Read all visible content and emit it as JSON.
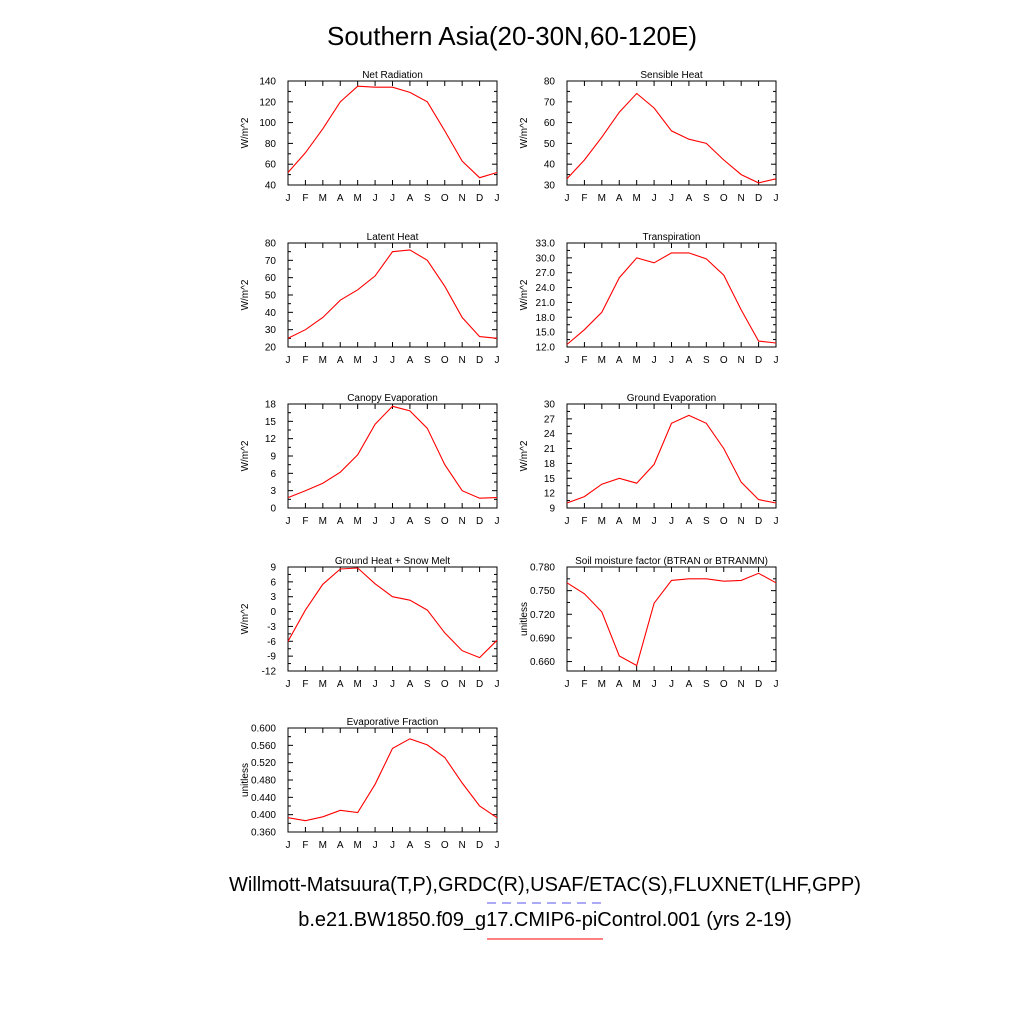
{
  "title": "Southern Asia(20-30N,60-120E)",
  "footer": {
    "obs_label": "Willmott-Matsuura(T,P),GRDC(R),USAF/ETAC(S),FLUXNET(LHF,GPP)",
    "obs_line_color": "#5555ee",
    "model_label": "b.e21.BW1850.f09_g17.CMIP6-piControl.001 (yrs 2-19)",
    "model_line_color": "#ff0000"
  },
  "months": [
    "J",
    "F",
    "M",
    "A",
    "M",
    "J",
    "J",
    "A",
    "S",
    "O",
    "N",
    "D",
    "J"
  ],
  "line_color": "#ff0000",
  "chart_data": [
    {
      "type": "line",
      "title": "Net Radiation",
      "ylabel": "W/m^2",
      "ylim": [
        40,
        140
      ],
      "yticks": [
        "40",
        "60",
        "80",
        "100",
        "120",
        "140"
      ],
      "values": [
        52,
        71,
        94,
        120,
        135,
        134,
        134,
        129,
        120,
        92,
        63,
        47,
        52
      ]
    },
    {
      "type": "line",
      "title": "Sensible Heat",
      "ylabel": "W/m^2",
      "ylim": [
        30,
        80
      ],
      "yticks": [
        "30",
        "40",
        "50",
        "60",
        "70",
        "80"
      ],
      "values": [
        33,
        42,
        53,
        65,
        74,
        67,
        56,
        52,
        50,
        42,
        35,
        31,
        33
      ]
    },
    {
      "type": "line",
      "title": "Latent Heat",
      "ylabel": "W/m^2",
      "ylim": [
        20,
        80
      ],
      "yticks": [
        "20",
        "30",
        "40",
        "50",
        "60",
        "70",
        "80"
      ],
      "values": [
        25,
        30,
        37,
        47,
        53,
        61,
        75,
        76,
        70,
        55,
        37,
        26,
        25
      ]
    },
    {
      "type": "line",
      "title": "Transpiration",
      "ylabel": "W/m^2",
      "ylim": [
        12,
        33
      ],
      "yticks": [
        "12.0",
        "15.0",
        "18.0",
        "21.0",
        "24.0",
        "27.0",
        "30.0",
        "33.0"
      ],
      "values": [
        12.5,
        15.5,
        19,
        26,
        30,
        29,
        31,
        31,
        29.8,
        26.5,
        19.5,
        13.2,
        12.8
      ]
    },
    {
      "type": "line",
      "title": "Canopy Evaporation",
      "ylabel": "W/m^2",
      "ylim": [
        0,
        18
      ],
      "yticks": [
        "0",
        "3",
        "6",
        "9",
        "12",
        "15",
        "18"
      ],
      "values": [
        1.8,
        3,
        4.3,
        6.2,
        9.2,
        14.5,
        17.6,
        16.8,
        13.8,
        7.5,
        3,
        1.7,
        1.8
      ]
    },
    {
      "type": "line",
      "title": "Ground Evaporation",
      "ylabel": "W/m^2",
      "ylim": [
        9,
        30
      ],
      "yticks": [
        "9",
        "12",
        "15",
        "18",
        "21",
        "24",
        "27",
        "30"
      ],
      "values": [
        10,
        11.3,
        13.8,
        15,
        14,
        17.8,
        26.1,
        27.7,
        26.1,
        21,
        14.2,
        10.7,
        10
      ]
    },
    {
      "type": "line",
      "title": "Ground Heat + Snow Melt",
      "ylabel": "W/m^2",
      "ylim": [
        -12,
        9
      ],
      "yticks": [
        "-12",
        "-9",
        "-6",
        "-3",
        "0",
        "3",
        "6",
        "9"
      ],
      "values": [
        -6,
        0.3,
        5.5,
        8.6,
        8.8,
        5.6,
        3,
        2.3,
        0.3,
        -4.3,
        -7.9,
        -9.3,
        -5.8
      ]
    },
    {
      "type": "line",
      "title": "Soil moisture factor (BTRAN or BTRANMN)",
      "ylabel": "unitless",
      "ylim": [
        0.648,
        0.78
      ],
      "yticks": [
        "0.660",
        "0.690",
        "0.720",
        "0.750",
        "0.780"
      ],
      "values": [
        0.76,
        0.746,
        0.723,
        0.667,
        0.655,
        0.734,
        0.763,
        0.765,
        0.765,
        0.762,
        0.763,
        0.772,
        0.76
      ]
    },
    {
      "type": "line",
      "title": "Evaporative Fraction",
      "ylabel": "unitless",
      "ylim": [
        0.36,
        0.6
      ],
      "yticks": [
        "0.360",
        "0.400",
        "0.440",
        "0.480",
        "0.520",
        "0.560",
        "0.600"
      ],
      "values": [
        0.393,
        0.386,
        0.395,
        0.41,
        0.405,
        0.47,
        0.553,
        0.575,
        0.561,
        0.532,
        0.473,
        0.42,
        0.393
      ]
    }
  ]
}
